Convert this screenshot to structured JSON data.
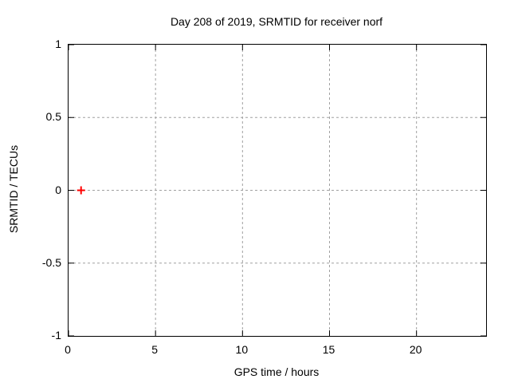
{
  "window": {
    "background": "#ffffff"
  },
  "chart_data": {
    "type": "scatter",
    "title": "Day 208 of 2019, SRMTID for receiver norf",
    "xlabel": "GPS time / hours",
    "ylabel": "SRMTID / TECUs",
    "xlim": [
      0,
      24
    ],
    "ylim": [
      -1,
      1
    ],
    "xticks": [
      0,
      5,
      10,
      15,
      20
    ],
    "xtick_labels": [
      "0",
      "5",
      "10",
      "15",
      "20"
    ],
    "yticks": [
      1,
      0.5,
      0,
      -0.5,
      -1
    ],
    "ytick_labels": [
      "1",
      "0.5",
      "0",
      "-0.5",
      "-1"
    ],
    "grid": true,
    "grid_style": "dashed",
    "grid_color": "#a0a0a0",
    "axis_color": "#000000",
    "legend": false,
    "series": [
      {
        "name": "SRMTID",
        "marker": "plus",
        "marker_size": 10,
        "color": "#ff0000",
        "points": [
          {
            "x": 0.72,
            "y": 0.0
          }
        ]
      }
    ]
  }
}
